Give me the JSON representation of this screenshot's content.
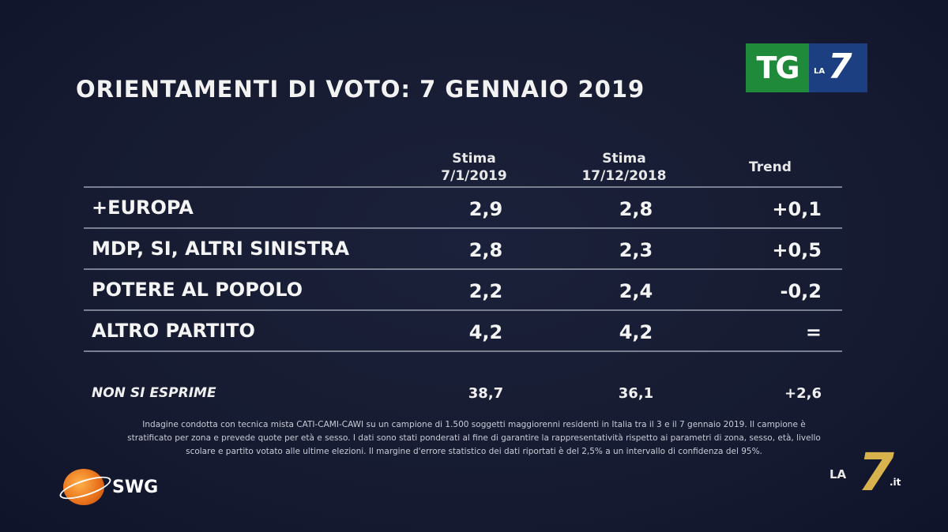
{
  "title": "ORIENTAMENTI DI VOTO: 7 GENNAIO 2019",
  "logo_tg": {
    "tg": "TG",
    "la": "LA",
    "seven": "7"
  },
  "table": {
    "headers": [
      {
        "line1": "Stima",
        "line2": "7/1/2019"
      },
      {
        "line1": "Stima",
        "line2": "17/12/2018"
      },
      {
        "line1": "Trend",
        "line2": ""
      }
    ],
    "rows": [
      {
        "label": "+EUROPA",
        "v1": "2,9",
        "v2": "2,8",
        "trend": "+0,1"
      },
      {
        "label": "MDP, SI, ALTRI SINISTRA",
        "v1": "2,8",
        "v2": "2,3",
        "trend": "+0,5"
      },
      {
        "label": "POTERE AL POPOLO",
        "v1": "2,2",
        "v2": "2,4",
        "trend": "-0,2"
      },
      {
        "label": "ALTRO PARTITO",
        "v1": "4,2",
        "v2": "4,2",
        "trend": "="
      }
    ],
    "non_si_esprime": {
      "label": "NON SI ESPRIME",
      "v1": "38,7",
      "v2": "36,1",
      "trend": "+2,6"
    }
  },
  "note_lines": [
    "Indagine condotta con tecnica mista CATI-CAMI-CAWI su un campione di 1.500 soggetti maggiorenni residenti in Italia tra il 3 e il 7 gennaio 2019. Il campione è",
    "stratificato per zona e prevede quote per età e sesso. I dati sono stati ponderati al fine di garantire la rappresentatività rispetto ai parametri di zona, sesso, età, livello",
    "scolare e partito votato alle ultime elezioni. Il margine d'errore statistico dei dati riportati è del 2,5% a un intervallo di confidenza del 95%."
  ],
  "swg_logo": "SWG",
  "la7it_logo": {
    "la": "LA",
    "seven": "7",
    "it": ".it"
  }
}
